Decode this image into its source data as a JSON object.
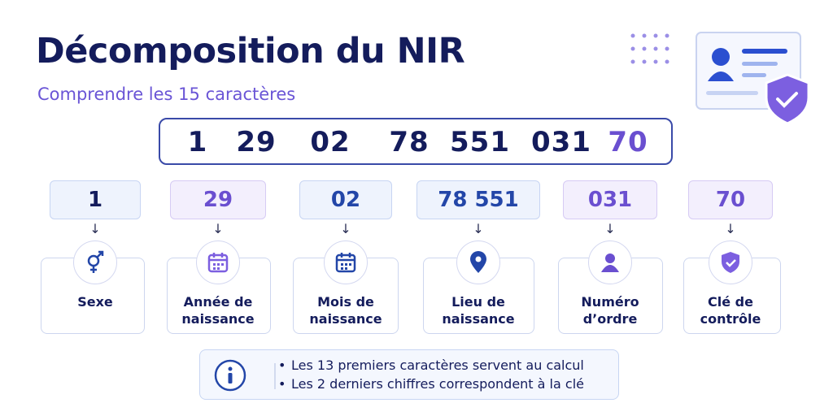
{
  "header": {
    "title": "Décomposition du NIR",
    "subtitle": "Comprendre les 15 caractères"
  },
  "nir": {
    "groups": [
      "1",
      "29",
      "02",
      "78",
      "551",
      "031",
      "70"
    ]
  },
  "segments": [
    {
      "code": "1",
      "label": "Sexe"
    },
    {
      "code": "29",
      "label": "Année de naissance"
    },
    {
      "code": "02",
      "label": "Mois de naissance"
    },
    {
      "code": "78 551",
      "label": "Lieu de naissance"
    },
    {
      "code": "031",
      "label": "Numéro d’ordre"
    },
    {
      "code": "70",
      "label": "Clé de contrôle"
    }
  ],
  "info": {
    "items": [
      "Les 13 premiers caractères servent au calcul",
      "Les 2 derniers chiffres correspondent à la clé"
    ]
  }
}
